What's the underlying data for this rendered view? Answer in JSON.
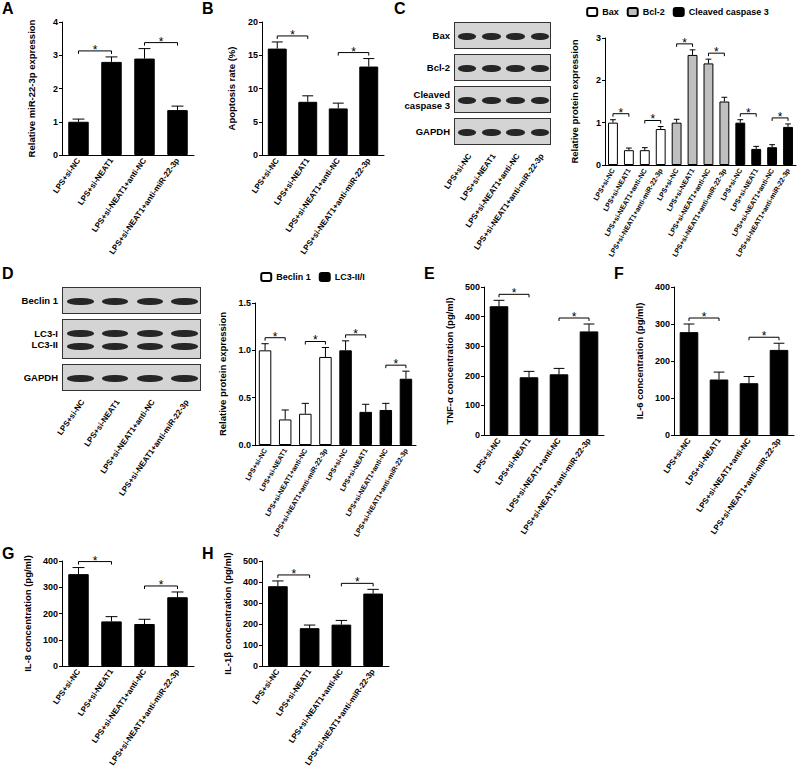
{
  "chart_data": [
    {
      "panel": "A",
      "type": "bar",
      "y_label": "Relative miR-22-3p expression",
      "categories": [
        "LPS+si-NC",
        "LPS+si-NEAT1",
        "LPS+si-NEAT1+anti-NC",
        "LPS+si-NEAT1+anti-miR-22-3p"
      ],
      "values": [
        1.0,
        2.8,
        2.9,
        1.35
      ],
      "errors": [
        0.08,
        0.15,
        0.3,
        0.12
      ],
      "color": "#000000",
      "ylim": [
        0,
        4
      ],
      "yticks": [
        0,
        1,
        2,
        3,
        4
      ],
      "grid": false,
      "significance": [
        {
          "pair": [
            0,
            1
          ],
          "label": "*"
        },
        {
          "pair": [
            2,
            3
          ],
          "label": "*"
        }
      ]
    },
    {
      "panel": "B",
      "type": "bar",
      "y_label": "Apoptosis rate (%)",
      "categories": [
        "LPS+si-NC",
        "LPS+si-NEAT1",
        "LPS+si-NEAT1+anti-NC",
        "LPS+si-NEAT1+anti-miR-22-3p"
      ],
      "values": [
        16,
        8,
        7,
        13.3
      ],
      "errors": [
        1.0,
        0.9,
        0.8,
        1.2
      ],
      "color": "#000000",
      "ylim": [
        0,
        20
      ],
      "yticks": [
        0,
        5,
        10,
        15,
        20
      ],
      "grid": false,
      "significance": [
        {
          "pair": [
            0,
            1
          ],
          "label": "*"
        },
        {
          "pair": [
            2,
            3
          ],
          "label": "*"
        }
      ]
    },
    {
      "panel": "C",
      "type": "bar",
      "y_label": "Relative protein expression",
      "categories": [
        "LPS+si-NC",
        "LPS+si-NEAT1",
        "LPS+si-NEAT1+anti-NC",
        "LPS+si-NEAT1+anti-miR-22-3p"
      ],
      "series": [
        {
          "name": "Bax",
          "color": "#ffffff",
          "values": [
            1.0,
            0.35,
            0.35,
            0.85
          ],
          "errors": [
            0.07,
            0.05,
            0.06,
            0.06
          ],
          "significance": [
            {
              "pair": [
                0,
                1
              ],
              "label": "*"
            },
            {
              "pair": [
                2,
                3
              ],
              "label": "*"
            }
          ]
        },
        {
          "name": "Bcl-2",
          "color": "#bfbfbf",
          "values": [
            1.0,
            2.6,
            2.4,
            1.5
          ],
          "errors": [
            0.08,
            0.12,
            0.1,
            0.1
          ],
          "significance": [
            {
              "pair": [
                0,
                1
              ],
              "label": "*"
            },
            {
              "pair": [
                2,
                3
              ],
              "label": "*"
            }
          ]
        },
        {
          "name": "Cleaved caspase 3",
          "color": "#000000",
          "values": [
            1.0,
            0.38,
            0.42,
            0.9
          ],
          "errors": [
            0.07,
            0.06,
            0.06,
            0.07
          ],
          "significance": [
            {
              "pair": [
                0,
                1
              ],
              "label": "*"
            },
            {
              "pair": [
                2,
                3
              ],
              "label": "*"
            }
          ]
        }
      ],
      "ylim": [
        0,
        3
      ],
      "yticks": [
        0,
        1,
        2,
        3
      ],
      "grid": false,
      "legend": "top"
    },
    {
      "panel": "D",
      "type": "bar",
      "y_label": "Relative protein expression",
      "categories": [
        "LPS+si-NC",
        "LPS+si-NEAT1",
        "LPS+si-NEAT1+anti-NC",
        "LPS+si-NEAT1+anti-miR-22-3p"
      ],
      "series": [
        {
          "name": "Beclin 1",
          "color": "#ffffff",
          "values": [
            1.0,
            0.27,
            0.33,
            0.93
          ],
          "errors": [
            0.07,
            0.1,
            0.11,
            0.1
          ],
          "significance": [
            {
              "pair": [
                0,
                1
              ],
              "label": "*"
            },
            {
              "pair": [
                2,
                3
              ],
              "label": "*"
            }
          ]
        },
        {
          "name": "LC3-II/I",
          "color": "#000000",
          "values": [
            1.0,
            0.35,
            0.37,
            0.7
          ],
          "errors": [
            0.1,
            0.08,
            0.07,
            0.08
          ],
          "significance": [
            {
              "pair": [
                0,
                1
              ],
              "label": "*"
            },
            {
              "pair": [
                2,
                3
              ],
              "label": "*"
            }
          ]
        }
      ],
      "ylim": [
        0,
        1.5
      ],
      "yticks": [
        {
          "value": 0,
          "label": "0.0"
        },
        {
          "value": 0.5,
          "label": "0.5"
        },
        {
          "value": 1,
          "label": "1.0"
        },
        {
          "value": 1.5,
          "label": "1.5"
        }
      ],
      "grid": false,
      "legend": "top"
    },
    {
      "panel": "E",
      "type": "bar",
      "y_label": "TNF-α concentration (pg/ml)",
      "categories": [
        "LPS+si-NC",
        "LPS+si-NEAT1",
        "LPS+si-NEAT1+anti-NC",
        "LPS+si-NEAT1+anti-miR-22-3p"
      ],
      "values": [
        435,
        195,
        205,
        350
      ],
      "errors": [
        20,
        20,
        20,
        25
      ],
      "color": "#000000",
      "ylim": [
        0,
        500
      ],
      "yticks": [
        0,
        100,
        200,
        300,
        400,
        500
      ],
      "grid": false,
      "significance": [
        {
          "pair": [
            0,
            1
          ],
          "label": "*"
        },
        {
          "pair": [
            2,
            3
          ],
          "label": "*"
        }
      ]
    },
    {
      "panel": "F",
      "type": "bar",
      "y_label": "IL-6 concentration (pg/ml)",
      "categories": [
        "LPS+si-NC",
        "LPS+si-NEAT1",
        "LPS+si-NEAT1+anti-NC",
        "LPS+si-NEAT1+anti-miR-22-3p"
      ],
      "values": [
        278,
        150,
        140,
        230
      ],
      "errors": [
        22,
        20,
        18,
        18
      ],
      "color": "#000000",
      "ylim": [
        0,
        400
      ],
      "yticks": [
        0,
        100,
        200,
        300,
        400
      ],
      "grid": false,
      "significance": [
        {
          "pair": [
            0,
            1
          ],
          "label": "*"
        },
        {
          "pair": [
            2,
            3
          ],
          "label": "*"
        }
      ]
    },
    {
      "panel": "G",
      "type": "bar",
      "y_label": "IL-8 concentration (pg/ml)",
      "categories": [
        "LPS+si-NC",
        "LPS+si-NEAT1",
        "LPS+si-NEAT1+anti-NC",
        "LPS+si-NEAT1+anti-miR-22-3p"
      ],
      "values": [
        350,
        170,
        160,
        262
      ],
      "errors": [
        25,
        18,
        18,
        20
      ],
      "color": "#000000",
      "ylim": [
        0,
        400
      ],
      "yticks": [
        0,
        100,
        200,
        300,
        400
      ],
      "grid": false,
      "significance": [
        {
          "pair": [
            0,
            1
          ],
          "label": "*"
        },
        {
          "pair": [
            2,
            3
          ],
          "label": "*"
        }
      ]
    },
    {
      "panel": "H",
      "type": "bar",
      "y_label": "IL-1β concentration (pg/ml)",
      "categories": [
        "LPS+si-NC",
        "LPS+si-NEAT1",
        "LPS+si-NEAT1+anti-NC",
        "LPS+si-NEAT1+anti-miR-22-3p"
      ],
      "values": [
        380,
        180,
        197,
        345
      ],
      "errors": [
        25,
        15,
        20,
        20
      ],
      "color": "#000000",
      "ylim": [
        0,
        500
      ],
      "yticks": [
        0,
        100,
        200,
        300,
        400,
        500
      ],
      "grid": false,
      "significance": [
        {
          "pair": [
            0,
            1
          ],
          "label": "*"
        },
        {
          "pair": [
            2,
            3
          ],
          "label": "*"
        }
      ]
    }
  ],
  "blots": [
    {
      "panel": "C",
      "bands": [
        [
          "Bax"
        ],
        [
          "Bcl-2"
        ],
        [
          "Cleaved caspase 3"
        ],
        [
          "GAPDH"
        ]
      ],
      "lanes": [
        "LPS+si-NC",
        "LPS+si-NEAT1",
        "LPS+si-NEAT1+anti-NC",
        "LPS+si-NEAT1+anti-miR-22-3p"
      ]
    },
    {
      "panel": "D",
      "bands": [
        [
          "Beclin 1"
        ],
        [
          "LC3-I",
          "LC3-II"
        ],
        [
          "GAPDH"
        ]
      ],
      "lanes": [
        "LPS+si-NC",
        "LPS+si-NEAT1",
        "LPS+si-NEAT1+anti-NC",
        "LPS+si-NEAT1+anti-miR-22-3p"
      ]
    }
  ]
}
